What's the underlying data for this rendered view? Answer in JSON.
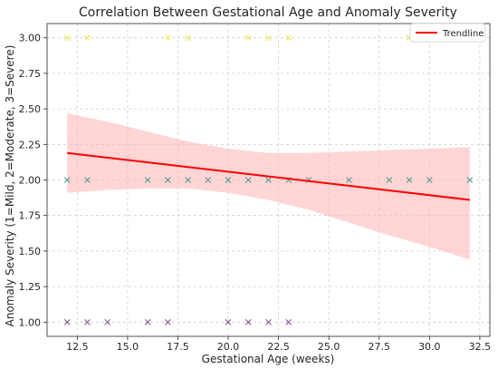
{
  "chart_data": {
    "type": "scatter",
    "title": "Correlation Between Gestational Age and Anomaly Severity",
    "xlabel": "Gestational Age (weeks)",
    "ylabel": "Anomaly Severity (1=Mild, 2=Moderate, 3=Severe)",
    "xlim": [
      11.0,
      33.0
    ],
    "ylim": [
      0.9,
      3.1
    ],
    "x_ticks": [
      12.5,
      15.0,
      17.5,
      20.0,
      22.5,
      25.0,
      27.5,
      30.0,
      32.5
    ],
    "x_tick_labels": [
      "12.5",
      "15.0",
      "17.5",
      "20.0",
      "22.5",
      "25.0",
      "27.5",
      "30.0",
      "32.5"
    ],
    "y_ticks": [
      1.0,
      1.25,
      1.5,
      1.75,
      2.0,
      2.25,
      2.5,
      2.75,
      3.0
    ],
    "y_tick_labels": [
      "1.00",
      "1.25",
      "1.50",
      "1.75",
      "2.00",
      "2.25",
      "2.50",
      "2.75",
      "3.00"
    ],
    "grid": true,
    "legend_position": "top-right",
    "marker": "x",
    "series": [
      {
        "color": "#f0e442",
        "points": [
          [
            12,
            3
          ],
          [
            13,
            3
          ],
          [
            17,
            3
          ],
          [
            18,
            3
          ],
          [
            21,
            3
          ],
          [
            22,
            3
          ],
          [
            23,
            3
          ],
          [
            29,
            3
          ]
        ]
      },
      {
        "color": "#4a9a8e",
        "points": [
          [
            12,
            2
          ],
          [
            13,
            2
          ],
          [
            16,
            2
          ],
          [
            17,
            2
          ],
          [
            18,
            2
          ],
          [
            19,
            2
          ],
          [
            20,
            2
          ],
          [
            21,
            2
          ],
          [
            22,
            2
          ],
          [
            23,
            2
          ],
          [
            24,
            2
          ],
          [
            26,
            2
          ],
          [
            28,
            2
          ],
          [
            29,
            2
          ],
          [
            30,
            2
          ],
          [
            32,
            2
          ]
        ]
      },
      {
        "color": "#7b3f8a",
        "points": [
          [
            12,
            1
          ],
          [
            13,
            1
          ],
          [
            14,
            1
          ],
          [
            16,
            1
          ],
          [
            17,
            1
          ],
          [
            20,
            1
          ],
          [
            21,
            1
          ],
          [
            22,
            1
          ],
          [
            23,
            1
          ]
        ]
      }
    ],
    "trendline": {
      "name": "Trendline",
      "color": "#ff0000",
      "start": [
        12,
        2.19
      ],
      "end": [
        32,
        1.86
      ]
    },
    "confidence_band": {
      "color": "#ffb3b3",
      "upper": [
        [
          12,
          2.47
        ],
        [
          14,
          2.41
        ],
        [
          16,
          2.34
        ],
        [
          18,
          2.27
        ],
        [
          20,
          2.22
        ],
        [
          22,
          2.19
        ],
        [
          24,
          2.19
        ],
        [
          26,
          2.2
        ],
        [
          28,
          2.21
        ],
        [
          30,
          2.22
        ],
        [
          32,
          2.23
        ]
      ],
      "lower": [
        [
          12,
          1.91
        ],
        [
          14,
          1.93
        ],
        [
          16,
          1.94
        ],
        [
          18,
          1.94
        ],
        [
          20,
          1.91
        ],
        [
          22,
          1.86
        ],
        [
          24,
          1.79
        ],
        [
          26,
          1.7
        ],
        [
          28,
          1.61
        ],
        [
          30,
          1.53
        ],
        [
          32,
          1.44
        ]
      ]
    }
  }
}
